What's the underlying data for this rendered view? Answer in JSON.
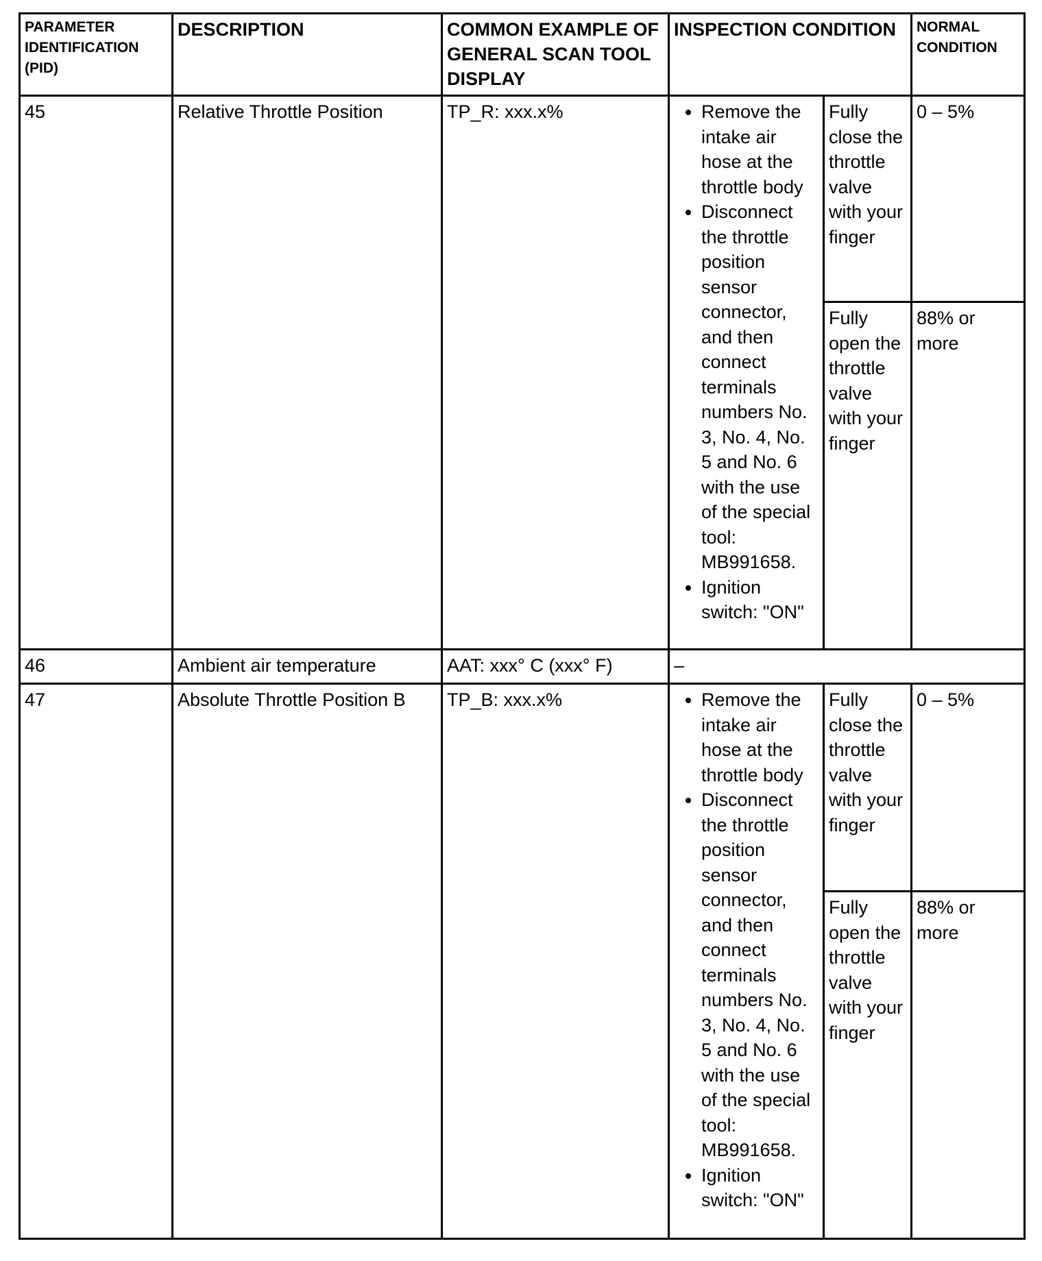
{
  "headers": {
    "pid": "PARAMETER IDENTIFICATION (PID)",
    "description": "DESCRIPTION",
    "display": "COMMON EXAMPLE OF GENERAL SCAN TOOL DISPLAY",
    "inspection": "INSPECTION CONDITION",
    "normal": "NORMAL CONDITION"
  },
  "rows": [
    {
      "pid": "45",
      "description": "Relative Throttle Position",
      "display": "TP_R: xxx.x%",
      "steps": [
        "Remove the intake air hose at the throttle body",
        "Disconnect the throttle position sensor connector, and then connect terminals numbers No. 3, No. 4, No. 5 and No. 6 with the use of the special tool: MB991658.",
        "Ignition switch: \"ON\""
      ],
      "conditions": [
        {
          "condition": "Fully close the throttle valve with your finger",
          "normal": "0 – 5%"
        },
        {
          "condition": "Fully open the throttle valve with your finger",
          "normal": "88% or more"
        }
      ]
    },
    {
      "pid": "46",
      "description": "Ambient air temperature",
      "display": "AAT: xxx° C (xxx° F)",
      "inspection": "–"
    },
    {
      "pid": "47",
      "description": "Absolute Throttle Position B",
      "display": "TP_B: xxx.x%",
      "steps": [
        "Remove the intake air hose at the throttle body",
        "Disconnect the throttle position sensor connector, and then connect terminals numbers No. 3, No. 4, No. 5 and No. 6 with the use of the special tool: MB991658.",
        "Ignition switch: \"ON\""
      ],
      "conditions": [
        {
          "condition": "Fully close the throttle valve with your finger",
          "normal": "0 – 5%"
        },
        {
          "condition": "Fully open the throttle valve with your finger",
          "normal": "88% or more"
        }
      ]
    }
  ]
}
